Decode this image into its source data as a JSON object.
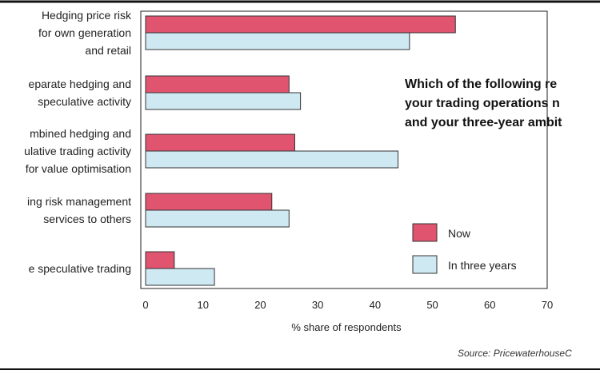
{
  "chart_data": {
    "type": "bar",
    "orientation": "horizontal",
    "question": [
      "Which of the following re",
      "your trading operations n",
      "and your three-year ambit"
    ],
    "categories": [
      [
        "Hedging price risk",
        "for own generation",
        "and retail"
      ],
      [
        "eparate hedging and",
        "speculative activity"
      ],
      [
        "mbined hedging and",
        "ulative trading activity",
        "for value optimisation"
      ],
      [
        "ing risk management",
        "services to others"
      ],
      [
        "e speculative trading"
      ]
    ],
    "series": [
      {
        "name": "Now",
        "color": "#e05470",
        "values": [
          54,
          25,
          26,
          22,
          5
        ]
      },
      {
        "name": "In three years",
        "color": "#cfe9f3",
        "values": [
          46,
          27,
          44,
          25,
          12
        ]
      }
    ],
    "xlabel": "% share of respondents",
    "xlim": [
      0,
      70
    ],
    "xticks": [
      0,
      10,
      20,
      30,
      40,
      50,
      60,
      70
    ],
    "grid": false,
    "legend_position": "right",
    "source": "Source: PricewaterhouseC"
  }
}
